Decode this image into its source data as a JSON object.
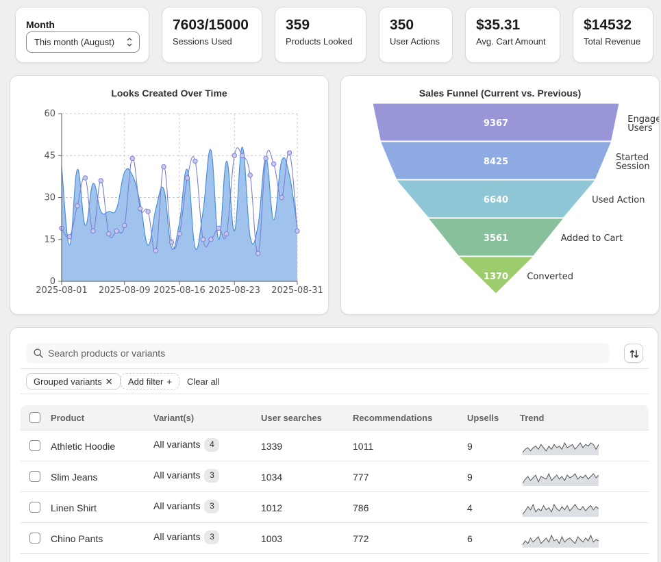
{
  "filter": {
    "title": "Month",
    "selected": "This month (August)"
  },
  "stats": [
    {
      "value": "7603/15000",
      "label": "Sessions Used"
    },
    {
      "value": "359",
      "label": "Products Looked"
    },
    {
      "value": "350",
      "label": "User Actions"
    },
    {
      "value": "$35.31",
      "label": "Avg. Cart Amount"
    },
    {
      "value": "$14532",
      "label": "Total Revenue"
    }
  ],
  "chart_data": [
    {
      "type": "area",
      "title": "Looks Created Over Time",
      "xlabel": "",
      "ylabel": "",
      "ylim": [
        0,
        60
      ],
      "yticks": [
        "0",
        "15",
        "30",
        "45",
        "60"
      ],
      "xticks": [
        "2025-08-01",
        "2025-08-09",
        "2025-08-16",
        "2025-08-23",
        "2025-08-31"
      ],
      "x": [
        "2025-08-01",
        "2025-08-02",
        "2025-08-03",
        "2025-08-04",
        "2025-08-05",
        "2025-08-06",
        "2025-08-07",
        "2025-08-08",
        "2025-08-09",
        "2025-08-10",
        "2025-08-11",
        "2025-08-12",
        "2025-08-13",
        "2025-08-14",
        "2025-08-15",
        "2025-08-16",
        "2025-08-17",
        "2025-08-18",
        "2025-08-19",
        "2025-08-20",
        "2025-08-21",
        "2025-08-22",
        "2025-08-23",
        "2025-08-24",
        "2025-08-25",
        "2025-08-26",
        "2025-08-27",
        "2025-08-28",
        "2025-08-29",
        "2025-08-30",
        "2025-08-31"
      ],
      "series": [
        {
          "values": [
            41,
            13,
            40,
            20,
            35,
            25,
            25,
            26,
            39,
            38,
            28,
            13,
            26,
            33,
            12,
            21,
            40,
            12,
            25,
            47,
            15,
            43,
            18,
            48,
            16,
            20,
            44,
            22,
            43,
            38,
            19
          ],
          "color": "#4a90d9"
        },
        {
          "values": [
            19,
            16,
            27,
            37,
            18,
            36,
            17,
            18,
            20,
            44,
            26,
            25,
            11,
            41,
            14,
            17,
            37,
            43,
            15,
            15,
            19,
            17,
            45,
            45,
            38,
            10,
            44,
            42,
            30,
            46,
            18
          ],
          "color": "#7b7fd4"
        }
      ]
    },
    {
      "type": "funnel",
      "title": "Sales Funnel (Current vs. Previous)",
      "stages": [
        {
          "label": "Engaged Users",
          "value": 9367,
          "color": "#9896d7"
        },
        {
          "label": "Started Session",
          "value": 8425,
          "color": "#8eaae2"
        },
        {
          "label": "Used Action",
          "value": 6640,
          "color": "#90c7d7"
        },
        {
          "label": "Added to Cart",
          "value": 3561,
          "color": "#88c09b"
        },
        {
          "label": "Converted",
          "value": 1370,
          "color": "#9ccc6c"
        }
      ]
    }
  ],
  "table": {
    "search_placeholder": "Search products or variants",
    "chips": {
      "grouped": "Grouped variants",
      "add_filter": "Add filter",
      "clear_all": "Clear all"
    },
    "columns": [
      "Product",
      "Variant(s)",
      "User searches",
      "Recommendations",
      "Upsells",
      "Trend"
    ],
    "rows": [
      {
        "product": "Athletic Hoodie",
        "variant": "All variants",
        "count": "4",
        "searches": "1339",
        "recs": "1011",
        "upsells": "9",
        "trend": [
          10,
          12,
          13,
          11,
          13,
          14,
          12,
          15,
          13,
          11,
          14,
          12,
          15,
          13,
          14,
          12,
          16,
          13,
          14,
          15,
          12,
          14,
          16,
          13,
          15,
          14,
          16,
          15,
          12,
          15
        ]
      },
      {
        "product": "Slim Jeans",
        "variant": "All variants",
        "count": "3",
        "searches": "1034",
        "recs": "777",
        "upsells": "9",
        "trend": [
          8,
          11,
          13,
          10,
          12,
          14,
          9,
          13,
          12,
          11,
          15,
          10,
          12,
          14,
          11,
          13,
          10,
          14,
          12,
          13,
          15,
          11,
          13,
          12,
          14,
          11,
          13,
          15,
          12,
          14
        ]
      },
      {
        "product": "Linen Shirt",
        "variant": "All variants",
        "count": "3",
        "searches": "1012",
        "recs": "786",
        "upsells": "4",
        "trend": [
          7,
          10,
          14,
          11,
          16,
          9,
          12,
          10,
          15,
          11,
          13,
          9,
          16,
          12,
          10,
          14,
          11,
          15,
          10,
          13,
          16,
          12,
          11,
          14,
          10,
          13,
          15,
          11,
          14,
          12
        ]
      },
      {
        "product": "Chino Pants",
        "variant": "All variants",
        "count": "3",
        "searches": "1003",
        "recs": "772",
        "upsells": "6",
        "trend": [
          9,
          12,
          10,
          14,
          11,
          13,
          15,
          10,
          12,
          14,
          11,
          16,
          12,
          13,
          10,
          15,
          11,
          13,
          14,
          12,
          10,
          15,
          13,
          11,
          14,
          12,
          16,
          11,
          13,
          12
        ]
      }
    ]
  }
}
